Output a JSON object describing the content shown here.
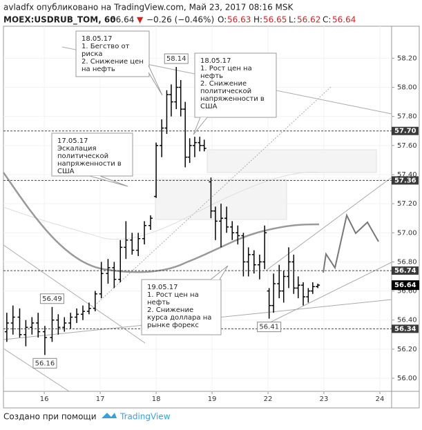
{
  "header": {
    "line1": "avladfx опубликовано на TradingView.com, Май 23, 2017 08:16 MSK",
    "symbol": "MOEX:USDRUB_TOM, 60",
    "last": "56.64",
    "arrow": "▼",
    "change": "−0.26 (−0.46%)",
    "o_label": "O:",
    "o": "56.63",
    "h_label": "H:",
    "h": "56.65",
    "l_label": "L:",
    "l": "56.62",
    "c_label": "C:",
    "c": "56.64"
  },
  "chart_data": {
    "type": "ohlc",
    "color": "#000000",
    "x": [
      -0.67,
      -0.56,
      -0.44,
      -0.33,
      -0.22,
      -0.11,
      0.01,
      0.14,
      0.25,
      0.36,
      0.47,
      0.58,
      0.69,
      0.8,
      0.91,
      1.02,
      1.14,
      1.25,
      1.36,
      1.46,
      1.57,
      1.68,
      1.79,
      1.9,
      2.0,
      2.1,
      2.19,
      2.27,
      2.36,
      2.44,
      2.52,
      2.6,
      2.69,
      2.78,
      2.86,
      2.98,
      3.06,
      3.16,
      3.26,
      3.36,
      3.46,
      3.56,
      3.65,
      3.75,
      3.85,
      3.94,
      4.02,
      4.1,
      4.2,
      4.28,
      4.37,
      4.46,
      4.54,
      4.63,
      4.72,
      4.8,
      4.89
    ],
    "open": [
      56.32,
      56.38,
      56.42,
      56.3,
      56.35,
      56.38,
      56.32,
      56.28,
      56.4,
      56.35,
      56.38,
      56.42,
      56.44,
      56.46,
      56.48,
      56.58,
      56.72,
      56.76,
      56.68,
      56.9,
      56.95,
      56.88,
      56.96,
      57.05,
      57.25,
      57.6,
      57.72,
      57.95,
      57.9,
      58.0,
      57.85,
      57.52,
      57.6,
      57.62,
      57.6,
      57.35,
      57.15,
      57.08,
      57.1,
      57.04,
      57.0,
      56.98,
      56.8,
      56.85,
      56.78,
      56.8,
      56.6,
      56.5,
      56.65,
      56.6,
      56.7,
      56.8,
      56.62,
      56.64,
      56.56,
      56.6,
      56.63
    ],
    "high": [
      56.45,
      56.5,
      56.48,
      56.4,
      56.42,
      56.45,
      56.36,
      56.49,
      56.44,
      56.42,
      56.45,
      56.48,
      56.5,
      56.52,
      56.6,
      56.8,
      56.82,
      56.8,
      56.95,
      57.08,
      57.0,
      57.0,
      57.08,
      57.12,
      57.62,
      57.78,
      57.98,
      58.02,
      58.14,
      58.05,
      57.9,
      57.65,
      57.66,
      57.66,
      57.64,
      57.38,
      57.18,
      57.2,
      57.18,
      57.08,
      57.05,
      57.0,
      56.9,
      56.88,
      56.85,
      57.05,
      56.62,
      56.72,
      56.78,
      56.74,
      56.9,
      56.85,
      56.7,
      56.66,
      56.62,
      56.66,
      56.65
    ],
    "low": [
      56.25,
      56.3,
      56.28,
      56.22,
      56.3,
      56.28,
      56.16,
      56.25,
      56.3,
      56.32,
      56.34,
      56.38,
      56.4,
      56.44,
      56.46,
      56.55,
      56.65,
      56.62,
      56.66,
      56.82,
      56.85,
      56.84,
      56.92,
      57.02,
      57.24,
      57.52,
      57.68,
      57.8,
      57.85,
      57.8,
      57.45,
      57.48,
      57.52,
      57.56,
      57.56,
      57.1,
      56.95,
      56.9,
      57.0,
      56.95,
      56.92,
      56.7,
      56.7,
      56.72,
      56.68,
      56.75,
      56.41,
      56.45,
      56.55,
      56.52,
      56.62,
      56.58,
      56.55,
      56.5,
      56.52,
      56.58,
      56.62
    ],
    "close": [
      56.38,
      56.42,
      56.3,
      56.35,
      56.38,
      56.32,
      56.28,
      56.4,
      56.35,
      56.38,
      56.42,
      56.44,
      56.46,
      56.48,
      56.58,
      56.72,
      56.76,
      56.68,
      56.9,
      56.95,
      56.88,
      56.96,
      57.05,
      57.1,
      57.6,
      57.72,
      57.95,
      57.9,
      58.0,
      57.85,
      57.52,
      57.6,
      57.62,
      57.6,
      57.58,
      57.15,
      57.08,
      57.1,
      57.04,
      57.0,
      56.98,
      56.8,
      56.85,
      56.78,
      56.8,
      57.0,
      56.5,
      56.65,
      56.6,
      56.7,
      56.8,
      56.62,
      56.64,
      56.56,
      56.6,
      56.63,
      56.64
    ],
    "xlim": [
      -0.73,
      6.21
    ],
    "xticks": [
      {
        "value": 0,
        "label": "16"
      },
      {
        "value": 1,
        "label": "17"
      },
      {
        "value": 2,
        "label": "18"
      },
      {
        "value": 3,
        "label": "19"
      },
      {
        "value": 4,
        "label": "22"
      },
      {
        "value": 5,
        "label": "23"
      },
      {
        "value": 6,
        "label": "24"
      }
    ],
    "ylim": [
      55.91,
      58.42
    ],
    "yticks": [
      {
        "value": 56,
        "label": "56.00"
      },
      {
        "value": 56.2,
        "label": "56.20"
      },
      {
        "value": 56.4,
        "label": "56.40"
      },
      {
        "value": 56.6,
        "label": "56.60"
      },
      {
        "value": 56.8,
        "label": "56.80"
      },
      {
        "value": 57,
        "label": "57.00"
      },
      {
        "value": 57.2,
        "label": "57.20"
      },
      {
        "value": 57.4,
        "label": "57.40"
      },
      {
        "value": 57.6,
        "label": "57.60"
      },
      {
        "value": 57.8,
        "label": "57.80"
      },
      {
        "value": 58,
        "label": "58.00"
      },
      {
        "value": 58.2,
        "label": "58.20"
      }
    ],
    "levels": [
      {
        "value": 57.7,
        "label": "57.70"
      },
      {
        "value": 57.36,
        "label": "57.36"
      },
      {
        "value": 56.74,
        "label": "56.74"
      },
      {
        "value": 56.34,
        "label": "56.34"
      }
    ],
    "last_price": {
      "value": 56.64,
      "label": "56.64"
    },
    "point_labels": [
      {
        "x": 2.36,
        "value": 58.14,
        "label": "58.14",
        "side": "top"
      },
      {
        "x": 0.14,
        "value": 56.49,
        "label": "56.49",
        "side": "top"
      },
      {
        "x": 0.01,
        "value": 56.16,
        "label": "56.16",
        "side": "bottom"
      },
      {
        "x": 4.02,
        "value": 56.41,
        "label": "56.41",
        "side": "bottom"
      }
    ],
    "callouts": [
      {
        "lines": [
          "18.05.17",
          "1. Бегство от",
          "риска",
          "2. Снижение цен",
          "на нефть"
        ]
      },
      {
        "lines": [
          "18.05.17",
          "1. Рост цен на",
          "нефть",
          "2. Снижение",
          "политической",
          "напряженности  в",
          "США"
        ]
      },
      {
        "lines": [
          "17.05.17",
          "Эскалация",
          "политической",
          "напряженности в",
          "США"
        ]
      },
      {
        "lines": [
          "19.05.17",
          "1. Рост цен на",
          "нефть",
          "2. Снижение",
          "курса доллара на",
          "рынке форекс"
        ]
      }
    ]
  },
  "footer": {
    "text": "Создано при помощи",
    "brand": "TradingView"
  }
}
